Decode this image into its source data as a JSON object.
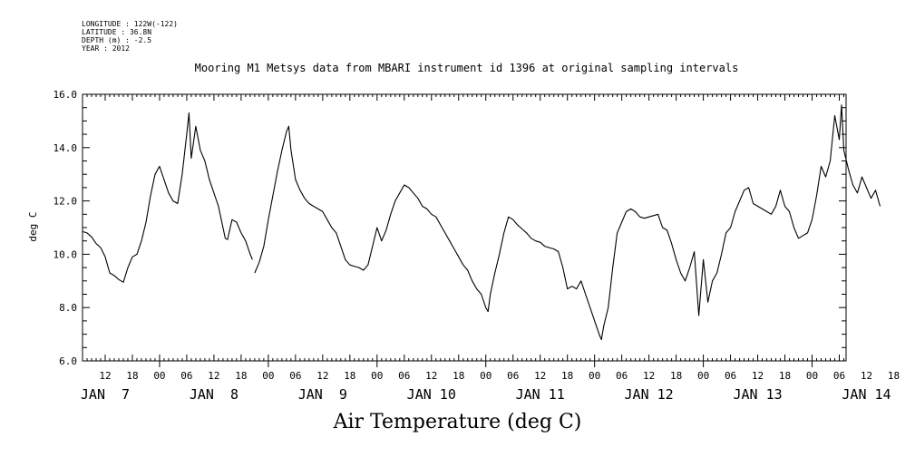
{
  "metadata": {
    "longitude": "LONGITUDE : 122W(-122)",
    "latitude": "LATITUDE : 36.8N",
    "depth": "DEPTH (m) : -2.5",
    "year": "YEAR : 2012"
  },
  "title": "Mooring M1 Metsys data from MBARI instrument id 1396 at original sampling intervals",
  "variable_label": "Air Temperature (deg C)",
  "chart_data": {
    "type": "line",
    "title": "Mooring M1 Metsys data from MBARI instrument id 1396 at original sampling intervals",
    "xlabel": "",
    "ylabel": "deg C",
    "ylim": [
      6.0,
      16.0
    ],
    "xlim_hours": [
      7,
      175.5
    ],
    "x_units": "hours since 2012-01-07 00:00",
    "y_ticks": [
      "6.0",
      "8.0",
      "10.0",
      "12.0",
      "14.0",
      "16.0"
    ],
    "hour_tick_labels": [
      "12",
      "18",
      "00",
      "06",
      "12",
      "18",
      "00",
      "06",
      "12",
      "18",
      "00",
      "06",
      "12",
      "18",
      "00",
      "06",
      "12",
      "18",
      "00",
      "06",
      "12",
      "18",
      "00",
      "06",
      "12",
      "18",
      "00",
      "06",
      "12",
      "18",
      "00",
      "06"
    ],
    "day_labels": [
      "JAN  7",
      "JAN  8",
      "JAN  9",
      "JAN 10",
      "JAN 11",
      "JAN 12",
      "JAN 13",
      "JAN 14"
    ],
    "series": [
      {
        "color": "#000000",
        "segments": [
          [
            [
              7,
              10.85
            ],
            [
              8,
              10.8
            ],
            [
              9,
              10.65
            ],
            [
              10,
              10.4
            ],
            [
              11,
              10.25
            ],
            [
              12,
              9.9
            ],
            [
              13,
              9.3
            ],
            [
              14,
              9.2
            ],
            [
              15,
              9.05
            ],
            [
              16,
              8.95
            ],
            [
              17,
              9.5
            ],
            [
              18,
              9.9
            ],
            [
              19,
              10.0
            ],
            [
              20,
              10.5
            ],
            [
              21,
              11.2
            ],
            [
              22,
              12.2
            ],
            [
              23,
              13.0
            ],
            [
              24,
              13.3
            ],
            [
              25,
              12.8
            ],
            [
              26,
              12.3
            ],
            [
              27,
              12.0
            ],
            [
              28,
              11.9
            ],
            [
              29,
              13.0
            ],
            [
              30,
              14.5
            ],
            [
              30.5,
              15.3
            ],
            [
              31,
              13.6
            ],
            [
              32,
              14.8
            ],
            [
              33,
              13.9
            ],
            [
              34,
              13.5
            ],
            [
              35,
              12.8
            ],
            [
              36,
              12.3
            ],
            [
              37,
              11.8
            ],
            [
              38,
              11.0
            ],
            [
              38.5,
              10.6
            ],
            [
              39,
              10.55
            ],
            [
              40,
              11.3
            ],
            [
              41,
              11.2
            ],
            [
              42,
              10.8
            ],
            [
              43,
              10.5
            ],
            [
              44,
              10.0
            ],
            [
              44.5,
              9.8
            ]
          ],
          [
            [
              45,
              9.3
            ],
            [
              46,
              9.7
            ],
            [
              47,
              10.3
            ],
            [
              48,
              11.3
            ],
            [
              49,
              12.2
            ],
            [
              50,
              13.1
            ],
            [
              51,
              13.9
            ],
            [
              52,
              14.6
            ],
            [
              52.5,
              14.8
            ],
            [
              53,
              13.9
            ],
            [
              54,
              12.8
            ],
            [
              55,
              12.4
            ],
            [
              56,
              12.1
            ],
            [
              57,
              11.9
            ],
            [
              58,
              11.8
            ],
            [
              59,
              11.7
            ],
            [
              60,
              11.6
            ],
            [
              61,
              11.3
            ],
            [
              62,
              11.0
            ],
            [
              63,
              10.8
            ],
            [
              64,
              10.3
            ],
            [
              65,
              9.8
            ],
            [
              66,
              9.6
            ],
            [
              67,
              9.55
            ],
            [
              68,
              9.5
            ],
            [
              69,
              9.4
            ],
            [
              70,
              9.6
            ],
            [
              71,
              10.3
            ],
            [
              72,
              11.0
            ],
            [
              73,
              10.5
            ],
            [
              74,
              10.9
            ],
            [
              75,
              11.5
            ],
            [
              76,
              12.0
            ],
            [
              77,
              12.3
            ],
            [
              78,
              12.6
            ],
            [
              79,
              12.5
            ],
            [
              80,
              12.3
            ],
            [
              81,
              12.1
            ],
            [
              82,
              11.8
            ],
            [
              83,
              11.7
            ],
            [
              84,
              11.5
            ],
            [
              85,
              11.4
            ],
            [
              86,
              11.1
            ],
            [
              87,
              10.8
            ],
            [
              88,
              10.5
            ],
            [
              89,
              10.2
            ],
            [
              90,
              9.9
            ],
            [
              91,
              9.6
            ],
            [
              92,
              9.4
            ],
            [
              93,
              9.0
            ],
            [
              94,
              8.7
            ],
            [
              95,
              8.5
            ],
            [
              96,
              8.0
            ],
            [
              96.5,
              7.85
            ],
            [
              97,
              8.5
            ],
            [
              98,
              9.3
            ],
            [
              99,
              10.0
            ],
            [
              100,
              10.8
            ],
            [
              101,
              11.4
            ],
            [
              102,
              11.3
            ],
            [
              103,
              11.1
            ],
            [
              104,
              10.95
            ],
            [
              105,
              10.8
            ],
            [
              106,
              10.6
            ],
            [
              107,
              10.5
            ],
            [
              108,
              10.45
            ],
            [
              109,
              10.3
            ],
            [
              110,
              10.25
            ],
            [
              111,
              10.2
            ],
            [
              112,
              10.1
            ],
            [
              113,
              9.5
            ],
            [
              114,
              8.7
            ],
            [
              115,
              8.8
            ],
            [
              116,
              8.7
            ],
            [
              117,
              9.0
            ],
            [
              118,
              8.5
            ],
            [
              119,
              8.0
            ],
            [
              120,
              7.5
            ],
            [
              121,
              7.0
            ],
            [
              121.5,
              6.8
            ],
            [
              122,
              7.3
            ],
            [
              123,
              8.0
            ],
            [
              124,
              9.5
            ],
            [
              125,
              10.8
            ],
            [
              126,
              11.2
            ],
            [
              127,
              11.6
            ],
            [
              128,
              11.7
            ],
            [
              129,
              11.6
            ],
            [
              130,
              11.4
            ],
            [
              131,
              11.35
            ],
            [
              132,
              11.4
            ],
            [
              133,
              11.45
            ],
            [
              134,
              11.5
            ],
            [
              135,
              11.0
            ],
            [
              136,
              10.9
            ],
            [
              137,
              10.4
            ],
            [
              138,
              9.8
            ],
            [
              139,
              9.3
            ],
            [
              140,
              9.0
            ],
            [
              141,
              9.5
            ],
            [
              142,
              10.1
            ],
            [
              143,
              7.7
            ],
            [
              144,
              9.8
            ],
            [
              145,
              8.2
            ],
            [
              146,
              9.0
            ],
            [
              147,
              9.3
            ],
            [
              148,
              10.0
            ],
            [
              149,
              10.8
            ],
            [
              150,
              11.0
            ],
            [
              151,
              11.6
            ],
            [
              152,
              12.0
            ],
            [
              153,
              12.4
            ],
            [
              154,
              12.5
            ],
            [
              155,
              11.9
            ],
            [
              156,
              11.8
            ],
            [
              157,
              11.7
            ],
            [
              158,
              11.6
            ],
            [
              159,
              11.5
            ],
            [
              160,
              11.8
            ],
            [
              161,
              12.4
            ],
            [
              162,
              11.8
            ],
            [
              163,
              11.6
            ],
            [
              164,
              11.0
            ],
            [
              165,
              10.6
            ],
            [
              166,
              10.7
            ],
            [
              167,
              10.8
            ],
            [
              168,
              11.3
            ],
            [
              169,
              12.2
            ],
            [
              170,
              13.3
            ],
            [
              171,
              12.9
            ],
            [
              172,
              13.5
            ],
            [
              173,
              15.2
            ],
            [
              174,
              14.3
            ],
            [
              174.5,
              15.6
            ],
            [
              175,
              13.9
            ],
            [
              176,
              13.2
            ],
            [
              177,
              12.6
            ],
            [
              178,
              12.3
            ],
            [
              179,
              12.9
            ],
            [
              180,
              12.5
            ],
            [
              181,
              12.1
            ],
            [
              182,
              12.4
            ],
            [
              183,
              11.8
            ]
          ]
        ]
      }
    ]
  }
}
